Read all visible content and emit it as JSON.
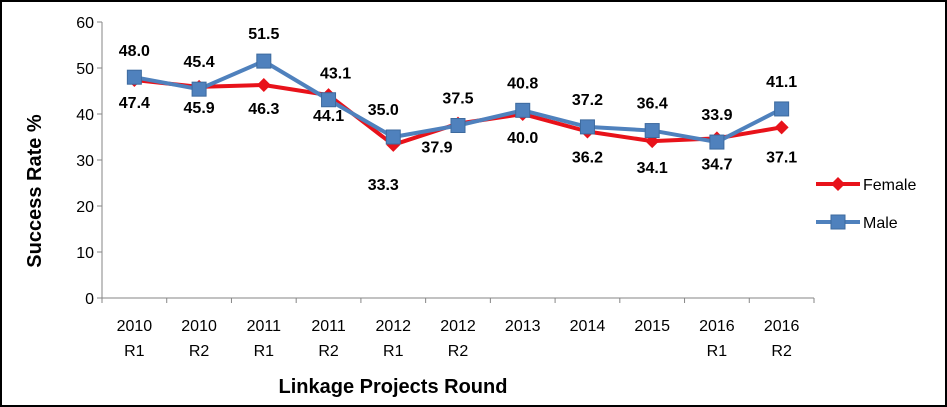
{
  "chart_data": {
    "type": "line",
    "title": "",
    "xlabel": "Linkage Projects Round",
    "ylabel": "Success Rate %",
    "ylim": [
      0,
      60
    ],
    "yticks": [
      0,
      10,
      20,
      30,
      40,
      50,
      60
    ],
    "grid": false,
    "legend_position": "right",
    "categories": [
      [
        "2010",
        "R1"
      ],
      [
        "2010",
        "R2"
      ],
      [
        "2011",
        "R1"
      ],
      [
        "2011",
        "R2"
      ],
      [
        "2012",
        "R1"
      ],
      [
        "2012",
        "R2"
      ],
      [
        "2013",
        ""
      ],
      [
        "2014",
        ""
      ],
      [
        "2015",
        ""
      ],
      [
        "2016",
        "R1"
      ],
      [
        "2016",
        "R2"
      ]
    ],
    "series": [
      {
        "name": "Female",
        "color": "#e8121a",
        "marker": "diamond",
        "values": [
          47.4,
          45.9,
          46.3,
          44.1,
          33.3,
          37.9,
          40.0,
          36.2,
          34.1,
          34.7,
          37.1
        ],
        "labels": [
          "47.4",
          "45.9",
          "46.3",
          "44.1",
          "33.3",
          "37.9",
          "40.0",
          "36.2",
          "34.1",
          "34.7",
          "37.1"
        ]
      },
      {
        "name": "Male",
        "color": "#4f81bd",
        "marker": "square",
        "values": [
          48.0,
          45.4,
          51.5,
          43.1,
          35.0,
          37.5,
          40.8,
          37.2,
          36.4,
          33.9,
          41.1
        ],
        "labels": [
          "48.0",
          "45.4",
          "51.5",
          "43.1",
          "35.0",
          "37.5",
          "40.8",
          "37.2",
          "36.4",
          "33.9",
          "41.1"
        ]
      }
    ]
  }
}
